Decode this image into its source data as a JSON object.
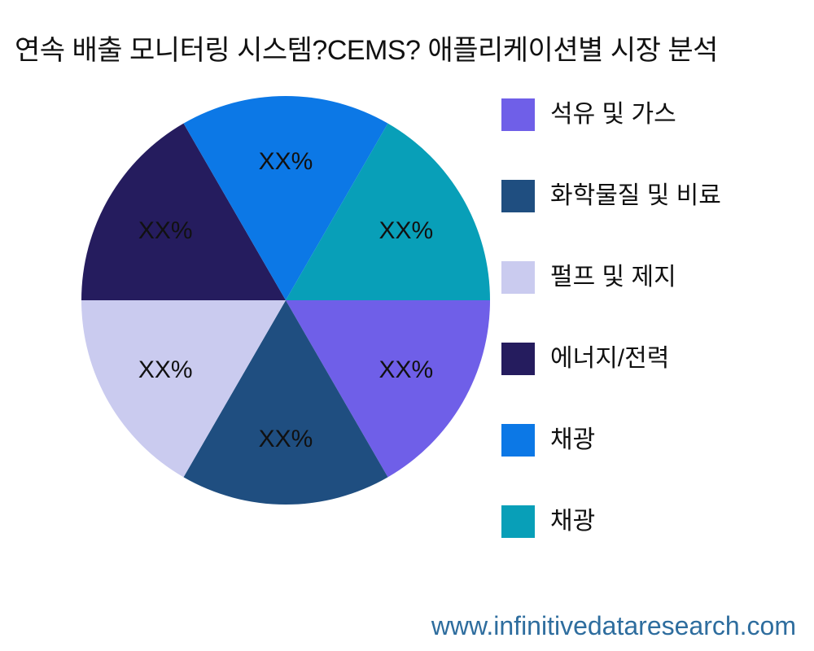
{
  "title": "연속 배출 모니터링 시스템?CEMS? 애플리케이션별 시장 분석",
  "footer": {
    "website": "www.infinitivedataresearch.com",
    "color": "#2E6D9E"
  },
  "chart_data": {
    "type": "pie",
    "title": "연속 배출 모니터링 시스템?CEMS? 애플리케이션별 시장 분석",
    "labels": [
      "석유 및 가스",
      "화학물질 및 비료",
      "펄프 및 제지",
      "에너지/전력",
      "채광",
      "채광"
    ],
    "values": [
      16.67,
      16.67,
      16.67,
      16.67,
      16.67,
      16.67
    ],
    "value_labels": [
      "XX%",
      "XX%",
      "XX%",
      "XX%",
      "XX%",
      "XX%"
    ],
    "colors": [
      "#6F5FE8",
      "#1F4E80",
      "#CACBEF",
      "#251C5E",
      "#0C78E6",
      "#089FB8"
    ],
    "start_angle_deg": 0,
    "direction": "clockwise",
    "legend_position": "right",
    "label_distance": 0.68,
    "label_color": "#111111",
    "label_font_px": 30
  }
}
